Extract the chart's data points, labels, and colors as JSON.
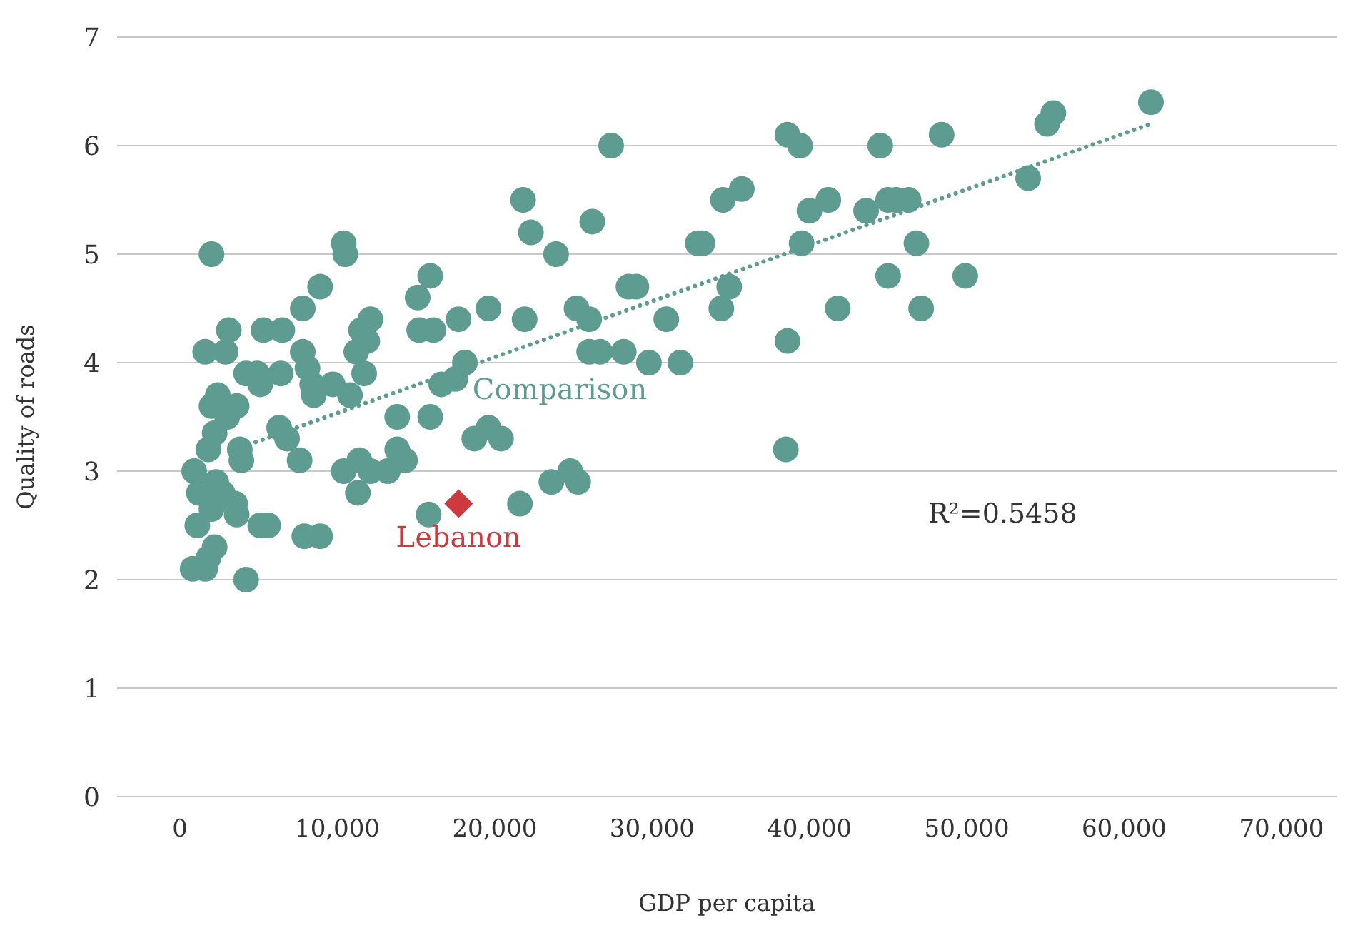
{
  "chart_data": {
    "type": "scatter",
    "xlabel": "GDP per capita",
    "ylabel": "Quality of roads",
    "xlim": [
      -4000,
      73500
    ],
    "ylim": [
      0,
      7
    ],
    "xticks": [
      {
        "value": 0,
        "label": "0"
      },
      {
        "value": 10000,
        "label": "10,000"
      },
      {
        "value": 20000,
        "label": "20,000"
      },
      {
        "value": 30000,
        "label": "30,000"
      },
      {
        "value": 40000,
        "label": "40,000"
      },
      {
        "value": 50000,
        "label": "50,000"
      },
      {
        "value": 60000,
        "label": "60,000"
      },
      {
        "value": 70000,
        "label": "70,000"
      }
    ],
    "yticks": [
      0,
      1,
      2,
      3,
      4,
      5,
      6,
      7
    ],
    "grid": "y",
    "annotations": [
      "R²=0.5458"
    ],
    "series": [
      {
        "name": "Comparison",
        "color": "#5e9b90",
        "marker": "circle",
        "x": [
          17500,
          2000,
          900,
          1200,
          1100,
          800,
          1600,
          1800,
          2200,
          1600,
          2000,
          2400,
          1800,
          2200,
          2300,
          2000,
          2700,
          3500,
          3600,
          4200,
          3100,
          2900,
          3000,
          3600,
          3800,
          3900,
          4200,
          4900,
          5100,
          5300,
          6500,
          6400,
          6300,
          6800,
          5100,
          5600,
          7600,
          7800,
          8900,
          7800,
          8100,
          8400,
          8500,
          7900,
          8900,
          9700,
          10400,
          10500,
          10800,
          10400,
          11400,
          11300,
          11500,
          12100,
          11900,
          11200,
          11700,
          12100,
          13200,
          13800,
          13800,
          14300,
          15100,
          15200,
          15900,
          16100,
          15900,
          15800,
          16600,
          17700,
          18100,
          18700,
          19600,
          20400,
          19600,
          21800,
          22300,
          21900,
          21600,
          23900,
          23600,
          24800,
          25300,
          25200,
          26000,
          26200,
          27400,
          26000,
          26700,
          28200,
          28500,
          29000,
          29800,
          30900,
          31800,
          32900,
          33200,
          34500,
          35700,
          34900,
          34400,
          38600,
          39400,
          40000,
          41200,
          39500,
          38600,
          38500,
          41800,
          43600,
          44500,
          45000,
          45500,
          46300,
          46800,
          45000,
          47100,
          48400,
          49900,
          53900,
          55100,
          55500,
          61700
        ],
        "values": [
          3.85,
          5.0,
          3.0,
          2.8,
          2.5,
          2.1,
          2.1,
          2.2,
          2.3,
          4.1,
          3.6,
          3.7,
          3.2,
          3.35,
          2.9,
          2.65,
          2.8,
          2.7,
          2.6,
          2.0,
          4.3,
          4.1,
          3.5,
          3.6,
          3.2,
          3.1,
          3.9,
          3.9,
          3.8,
          4.3,
          4.3,
          3.9,
          3.4,
          3.3,
          2.5,
          2.5,
          3.1,
          4.5,
          4.7,
          4.1,
          3.95,
          3.8,
          3.7,
          2.4,
          2.4,
          3.8,
          5.1,
          5.0,
          3.7,
          3.0,
          3.1,
          2.8,
          4.3,
          4.4,
          4.2,
          4.1,
          3.9,
          3.0,
          3.0,
          3.2,
          3.5,
          3.1,
          4.6,
          4.3,
          4.8,
          4.3,
          3.5,
          2.6,
          3.8,
          4.4,
          4.0,
          3.3,
          3.4,
          3.3,
          4.5,
          5.5,
          5.2,
          4.4,
          2.7,
          5.0,
          2.9,
          3.0,
          2.9,
          4.5,
          4.4,
          5.3,
          6.0,
          4.1,
          4.1,
          4.1,
          4.7,
          4.7,
          4.0,
          4.4,
          4.0,
          5.1,
          5.1,
          5.5,
          5.6,
          4.7,
          4.5,
          6.1,
          6.0,
          5.4,
          5.5,
          5.1,
          4.2,
          3.2,
          4.5,
          5.4,
          6.0,
          5.5,
          5.5,
          5.5,
          5.1,
          4.8,
          4.5,
          6.1,
          4.8,
          5.7,
          6.2,
          6.3,
          6.4
        ]
      },
      {
        "name": "Lebanon",
        "color": "#cc3a3f",
        "marker": "diamond",
        "x": [
          17700
        ],
        "values": [
          2.7
        ]
      },
      {
        "type": "line",
        "color": "#5e9b90",
        "line_style": "dotted",
        "marker": "none",
        "x": [
          3500,
          61700
        ],
        "values": [
          3.2,
          6.2
        ]
      }
    ]
  }
}
